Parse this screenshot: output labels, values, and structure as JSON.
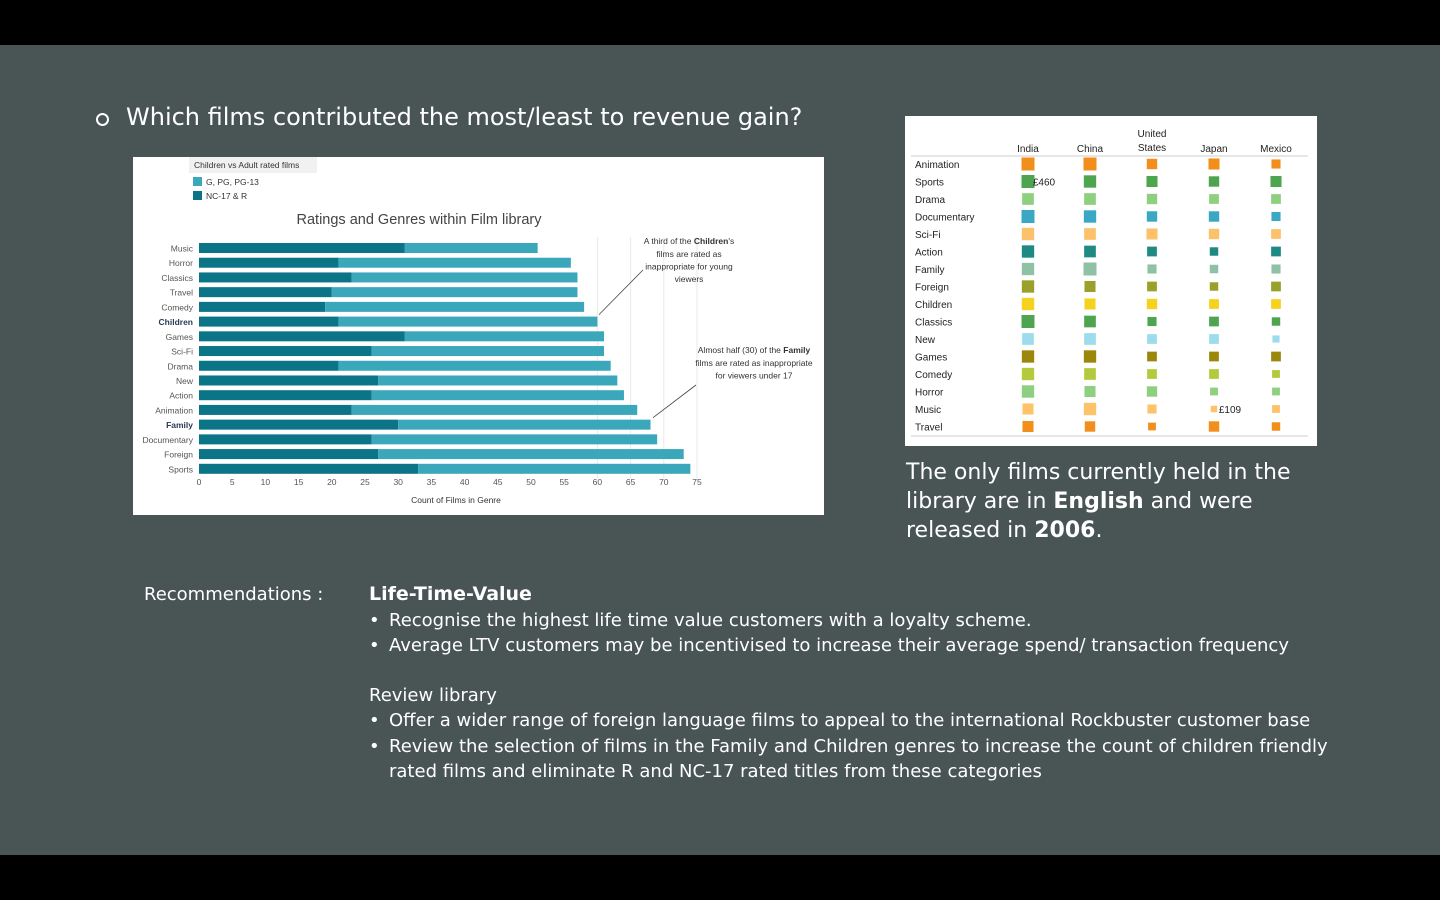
{
  "heading": "Which films contributed the most/least to revenue gain?",
  "note": {
    "part1": "The only films currently held in the library are in ",
    "bold1": "English",
    "part2": " and were released in ",
    "bold2": "2006",
    "part3": "."
  },
  "recommendations": {
    "label": "Recommendations :",
    "section1": {
      "title": "Life-Time-Value",
      "items": [
        "Recognise the highest life time value customers with a loyalty scheme.",
        "Average LTV customers may be incentivised to increase their average spend/ transaction frequency"
      ]
    },
    "section2": {
      "title": "Review library",
      "items": [
        "Offer a wider range of foreign language films to appeal to the international Rockbuster customer base",
        "Review the selection of films in the Family and Children genres to increase the count of children friendly rated films and eliminate R and NC-17 rated titles from these categories"
      ]
    }
  },
  "chart_data": [
    {
      "type": "bar",
      "orientation": "horizontal",
      "stacked": true,
      "title": "Ratings and Genres within Film library",
      "xlabel": "Count of Films in Genre",
      "ylabel": "",
      "xlim": [
        0,
        75
      ],
      "xticks": [
        0,
        5,
        10,
        15,
        20,
        25,
        30,
        35,
        40,
        45,
        50,
        55,
        60,
        65,
        70,
        75
      ],
      "legend": {
        "title": "Children vs Adult rated films",
        "position": "top-left",
        "entries": [
          {
            "label": "G, PG, PG-13",
            "color": "#3aa7bb"
          },
          {
            "label": "NC-17 & R",
            "color": "#0b7486"
          }
        ]
      },
      "categories": [
        "Music",
        "Horror",
        "Classics",
        "Travel",
        "Comedy",
        "Children",
        "Games",
        "Sci-Fi",
        "Drama",
        "New",
        "Action",
        "Animation",
        "Family",
        "Documentary",
        "Foreign",
        "Sports"
      ],
      "bold_categories": [
        "Children",
        "Family"
      ],
      "series": [
        {
          "name": "NC-17 & R",
          "color": "#0b7486",
          "values": [
            31,
            21,
            23,
            20,
            19,
            21,
            31,
            26,
            21,
            27,
            26,
            23,
            30,
            26,
            27,
            33
          ]
        },
        {
          "name": "G, PG, PG-13",
          "color": "#3aa7bb",
          "values": [
            20,
            35,
            34,
            37,
            39,
            39,
            30,
            35,
            41,
            36,
            38,
            43,
            38,
            43,
            46,
            41
          ]
        }
      ],
      "annotations": [
        {
          "lines": [
            "A third of the ",
            "Children",
            "'s",
            "films are rated as",
            "inappropriate for young",
            "viewers"
          ],
          "points_to": "Children"
        },
        {
          "lines": [
            "Almost half (30) of the ",
            "Family",
            "films are rated as inappropriate",
            "for viewers under 17"
          ],
          "points_to": "Family"
        }
      ]
    },
    {
      "type": "heatmap",
      "encoding": "square size and color by genre",
      "columns": [
        "India",
        "China",
        "United States",
        "Japan",
        "Mexico"
      ],
      "rows": [
        "Animation",
        "Sports",
        "Drama",
        "Documentary",
        "Sci-Fi",
        "Action",
        "Family",
        "Foreign",
        "Children",
        "Classics",
        "New",
        "Games",
        "Comedy",
        "Horror",
        "Music",
        "Travel"
      ],
      "row_colors": [
        "#f28e1c",
        "#4fa450",
        "#8ed07f",
        "#3aa7c4",
        "#fbc16b",
        "#1f8a84",
        "#8fc1a6",
        "#9aa12b",
        "#f5d21d",
        "#4fa450",
        "#9cdcec",
        "#9c870d",
        "#b5c93d",
        "#8ed07f",
        "#fcc36a",
        "#f28e1c"
      ],
      "size_scale": [
        [
          1,
          1,
          0.8,
          0.85,
          0.7
        ],
        [
          1,
          0.95,
          0.85,
          0.8,
          0.85
        ],
        [
          0.9,
          0.9,
          0.8,
          0.75,
          0.75
        ],
        [
          1,
          0.95,
          0.8,
          0.8,
          0.7
        ],
        [
          0.95,
          0.9,
          0.85,
          0.8,
          0.75
        ],
        [
          0.95,
          0.9,
          0.75,
          0.65,
          0.75
        ],
        [
          0.95,
          1,
          0.7,
          0.65,
          0.7
        ],
        [
          0.95,
          0.85,
          0.75,
          0.65,
          0.75
        ],
        [
          0.95,
          0.85,
          0.8,
          0.75,
          0.75
        ],
        [
          1,
          0.9,
          0.7,
          0.75,
          0.65
        ],
        [
          0.9,
          0.9,
          0.75,
          0.75,
          0.55
        ],
        [
          0.95,
          0.95,
          0.75,
          0.75,
          0.75
        ],
        [
          0.95,
          0.9,
          0.75,
          0.75,
          0.6
        ],
        [
          0.95,
          0.85,
          0.8,
          0.6,
          0.6
        ],
        [
          0.85,
          0.95,
          0.7,
          0.5,
          0.6
        ],
        [
          0.85,
          0.8,
          0.6,
          0.8,
          0.65
        ]
      ],
      "labels": [
        {
          "row": "Sports",
          "column": "India",
          "text": "£460"
        },
        {
          "row": "Music",
          "column": "Japan",
          "text": "£109"
        }
      ]
    }
  ]
}
